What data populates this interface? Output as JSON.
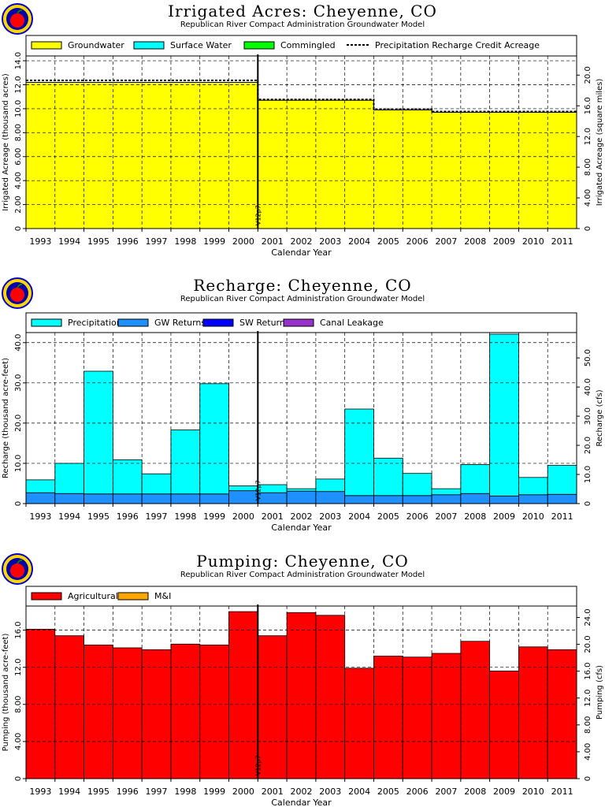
{
  "colors": {
    "groundwater": "#ffff00",
    "surface_water": "#00ffff",
    "commingled": "#00ff00",
    "precipitation": "#00ffff",
    "gw_returns": "#1e90ff",
    "sw_returns": "#0000ff",
    "canal_leakage": "#9932cc",
    "agricultural": "#ff0000",
    "mi": "#ffa500"
  },
  "chart_data": [
    {
      "type": "area",
      "title": "Irrigated Acres: Cheyenne, CO",
      "subtitle": "Republican River Compact Administration Groundwater Model",
      "xlabel": "Calendar Year",
      "ylabel": "Irrigated Acreage (thousand acres)",
      "y2label": "Irrigated Acreage (square miles)",
      "categories": [
        "1993",
        "1994",
        "1995",
        "1996",
        "1997",
        "1998",
        "1999",
        "2000",
        "2001",
        "2002",
        "2003",
        "2004",
        "2005",
        "2006",
        "2007",
        "2008",
        "2009",
        "2010",
        "2011"
      ],
      "ylim": [
        0,
        14.4
      ],
      "yticks": [
        "0",
        "2.00",
        "4.00",
        "6.00",
        "8.00",
        "10.0",
        "12.0",
        "14.0"
      ],
      "y2lim": [
        0,
        22.5
      ],
      "y2ticks": [
        "0",
        "4.00",
        "8.00",
        "12.0",
        "16.0",
        "20.0"
      ],
      "legend": [
        {
          "label": "Groundwater",
          "swatch": "#ffff00"
        },
        {
          "label": "Surface Water",
          "swatch": "#00ffff"
        },
        {
          "label": "Commingled",
          "swatch": "#00ff00"
        },
        {
          "label": "Precipitation Recharge Credit Acreage",
          "swatch": "dashed"
        }
      ],
      "series": [
        {
          "name": "Groundwater",
          "values": [
            12.2,
            12.2,
            12.2,
            12.2,
            12.2,
            12.2,
            12.2,
            12.2,
            10.7,
            10.7,
            10.7,
            10.7,
            9.9,
            9.9,
            9.7,
            9.7,
            9.7,
            9.7,
            9.7
          ]
        }
      ],
      "line": {
        "name": "Precipitation Recharge Credit Acreage",
        "values": [
          12.3,
          12.3,
          12.3,
          12.3,
          12.3,
          12.3,
          12.3,
          12.3,
          10.7,
          10.7,
          10.7,
          10.7,
          9.9,
          9.9,
          9.7,
          9.7,
          9.7,
          9.7,
          9.7
        ]
      },
      "vline": {
        "at": 2000.5,
        "label": "V12p7"
      },
      "legend_position": "top"
    },
    {
      "type": "bar",
      "title": "Recharge: Cheyenne, CO",
      "subtitle": "Republican River Compact Administration Groundwater Model",
      "xlabel": "Calendar Year",
      "ylabel": "Recharge (thousand acre-feet)",
      "y2label": "Recharge (cfs)",
      "categories": [
        "1993",
        "1994",
        "1995",
        "1996",
        "1997",
        "1998",
        "1999",
        "2000",
        "2001",
        "2002",
        "2003",
        "2004",
        "2005",
        "2006",
        "2007",
        "2008",
        "2009",
        "2010",
        "2011"
      ],
      "ylim": [
        0,
        42.5
      ],
      "yticks": [
        "0",
        "10.0",
        "20.0",
        "30.0",
        "40.0"
      ],
      "y2lim": [
        0,
        58.7
      ],
      "y2ticks": [
        "0",
        "10.0",
        "20.0",
        "30.0",
        "40.0",
        "50.0"
      ],
      "legend": [
        {
          "label": "Precipitation",
          "swatch": "#00ffff"
        },
        {
          "label": "GW Returns",
          "swatch": "#1e90ff"
        },
        {
          "label": "SW Returns",
          "swatch": "#0000ff"
        },
        {
          "label": "Canal Leakage",
          "swatch": "#9932cc"
        }
      ],
      "series": [
        {
          "name": "GW Returns",
          "values": [
            2.7,
            2.5,
            2.4,
            2.4,
            2.4,
            2.4,
            2.4,
            3.2,
            2.7,
            3.1,
            3.0,
            2.0,
            2.0,
            2.0,
            2.2,
            2.5,
            1.9,
            2.2,
            2.3
          ]
        },
        {
          "name": "Precipitation",
          "values": [
            3.2,
            7.5,
            30.5,
            8.5,
            5.0,
            15.9,
            27.4,
            1.2,
            2.0,
            0.6,
            3.1,
            21.5,
            9.3,
            5.5,
            1.5,
            7.2,
            40.2,
            4.3,
            7.2
          ]
        }
      ],
      "vline": {
        "at": 2000.5,
        "label": "V12p7"
      },
      "legend_position": "top"
    },
    {
      "type": "bar",
      "title": "Pumping: Cheyenne, CO",
      "subtitle": "Republican River Compact Administration Groundwater Model",
      "xlabel": "Calendar Year",
      "ylabel": "Pumping (thousand acre-feet)",
      "y2label": "Pumping (cfs)",
      "categories": [
        "1993",
        "1994",
        "1995",
        "1996",
        "1997",
        "1998",
        "1999",
        "2000",
        "2001",
        "2002",
        "2003",
        "2004",
        "2005",
        "2006",
        "2007",
        "2008",
        "2009",
        "2010",
        "2011"
      ],
      "ylim": [
        0,
        18.6
      ],
      "yticks": [
        "0",
        "4.00",
        "8.00",
        "12.0",
        "16.0"
      ],
      "y2lim": [
        0,
        25.7
      ],
      "y2ticks": [
        "0",
        "4.00",
        "8.00",
        "12.0",
        "16.0",
        "20.0",
        "24.0"
      ],
      "legend": [
        {
          "label": "Agricultural",
          "swatch": "#ff0000"
        },
        {
          "label": "M&I",
          "swatch": "#ffa500"
        }
      ],
      "series": [
        {
          "name": "Agricultural",
          "values": [
            16.1,
            15.4,
            14.4,
            14.1,
            13.9,
            14.5,
            14.4,
            18.0,
            15.4,
            17.9,
            17.6,
            11.9,
            13.2,
            13.1,
            13.5,
            14.8,
            11.6,
            14.2,
            13.9
          ]
        }
      ],
      "vline": {
        "at": 2000.5,
        "label": "V12p7"
      },
      "legend_position": "top"
    }
  ]
}
